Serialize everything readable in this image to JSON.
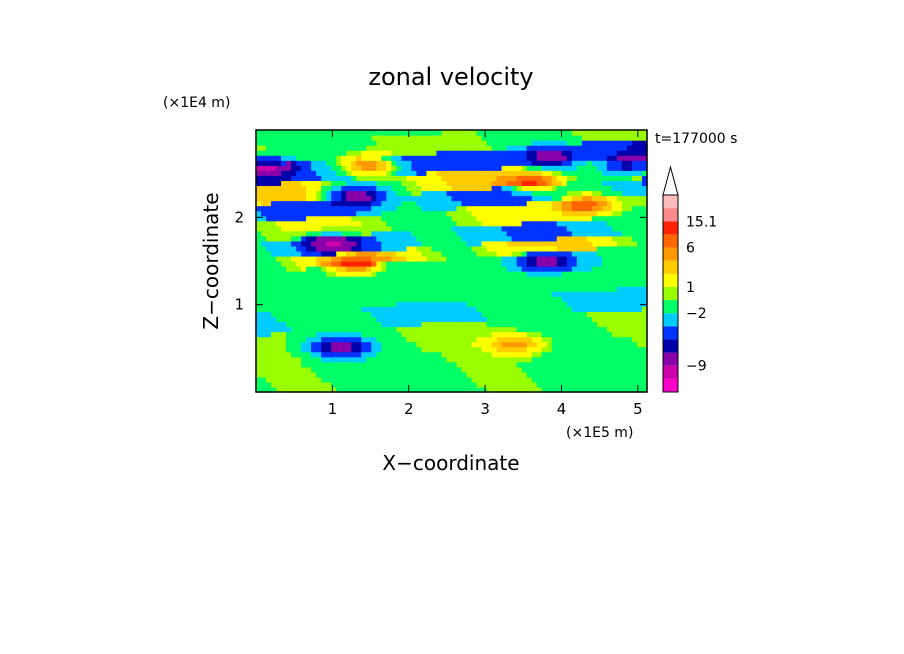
{
  "chart_data": {
    "type": "heatmap",
    "title": "zonal velocity",
    "time_label": "t=177000 s",
    "xlabel": "X−coordinate",
    "ylabel": "Z−coordinate",
    "x_scale_note": "(×1E5 m)",
    "y_scale_note": "(×1E4 m)",
    "xlim": [
      0,
      5.12
    ],
    "ylim": [
      0,
      3.0
    ],
    "x_ticks": [
      {
        "value": 1,
        "label": "1"
      },
      {
        "value": 2,
        "label": "2"
      },
      {
        "value": 3,
        "label": "3"
      },
      {
        "value": 4,
        "label": "4"
      },
      {
        "value": 5,
        "label": "5"
      }
    ],
    "y_ticks": [
      {
        "value": 1,
        "label": "1"
      },
      {
        "value": 2,
        "label": "2"
      }
    ],
    "colorbar": {
      "levels": [
        {
          "color": "#ff00cc"
        },
        {
          "color": "#cc00aa"
        },
        {
          "color": "#8800aa"
        },
        {
          "color": "#0000aa"
        },
        {
          "color": "#0033ff"
        },
        {
          "color": "#00ccff"
        },
        {
          "color": "#00ff66"
        },
        {
          "color": "#99ff00"
        },
        {
          "color": "#ffff00"
        },
        {
          "color": "#ffcc00"
        },
        {
          "color": "#ff9900"
        },
        {
          "color": "#ff6600"
        },
        {
          "color": "#ff2200"
        },
        {
          "color": "#ff8888"
        },
        {
          "color": "#ffbbbb"
        }
      ],
      "labels": [
        "15.1",
        "6",
        "1",
        "−2",
        "−9"
      ]
    },
    "bands": [
      {
        "z": 0.15,
        "value": 0.6
      },
      {
        "z": 0.5,
        "value": 0.8
      },
      {
        "z": 0.8,
        "value": -1.0
      },
      {
        "z": 1.0,
        "value": 0.3
      },
      {
        "z": 1.3,
        "value": -0.5
      },
      {
        "z": 1.45,
        "value": 3.0
      },
      {
        "z": 1.6,
        "value": -2.5
      },
      {
        "z": 1.85,
        "value": 1.5
      },
      {
        "z": 2.05,
        "value": -3.0
      },
      {
        "z": 2.25,
        "value": 2.5
      },
      {
        "z": 2.5,
        "value": -4.0
      },
      {
        "z": 2.7,
        "value": 1.0
      },
      {
        "z": 2.95,
        "value": -0.5
      }
    ],
    "blobs": [
      {
        "x": 1.1,
        "z": 0.52,
        "value": -7.5
      },
      {
        "x": 1.3,
        "z": 2.25,
        "value": -8.0
      },
      {
        "x": 1.0,
        "z": 1.7,
        "value": -7.0
      },
      {
        "x": 0.15,
        "z": 2.6,
        "value": -6.5
      },
      {
        "x": 3.85,
        "z": 2.7,
        "value": -7.5
      },
      {
        "x": 4.9,
        "z": 2.6,
        "value": -6.5
      },
      {
        "x": 3.8,
        "z": 1.5,
        "value": -6.5
      },
      {
        "x": 4.3,
        "z": 2.15,
        "value": 5.5
      },
      {
        "x": 3.6,
        "z": 2.4,
        "value": 5.0
      },
      {
        "x": 1.5,
        "z": 2.6,
        "value": 4.5
      },
      {
        "x": 1.3,
        "z": 1.45,
        "value": 4.5
      },
      {
        "x": 3.4,
        "z": 0.55,
        "value": 3.0
      }
    ]
  }
}
